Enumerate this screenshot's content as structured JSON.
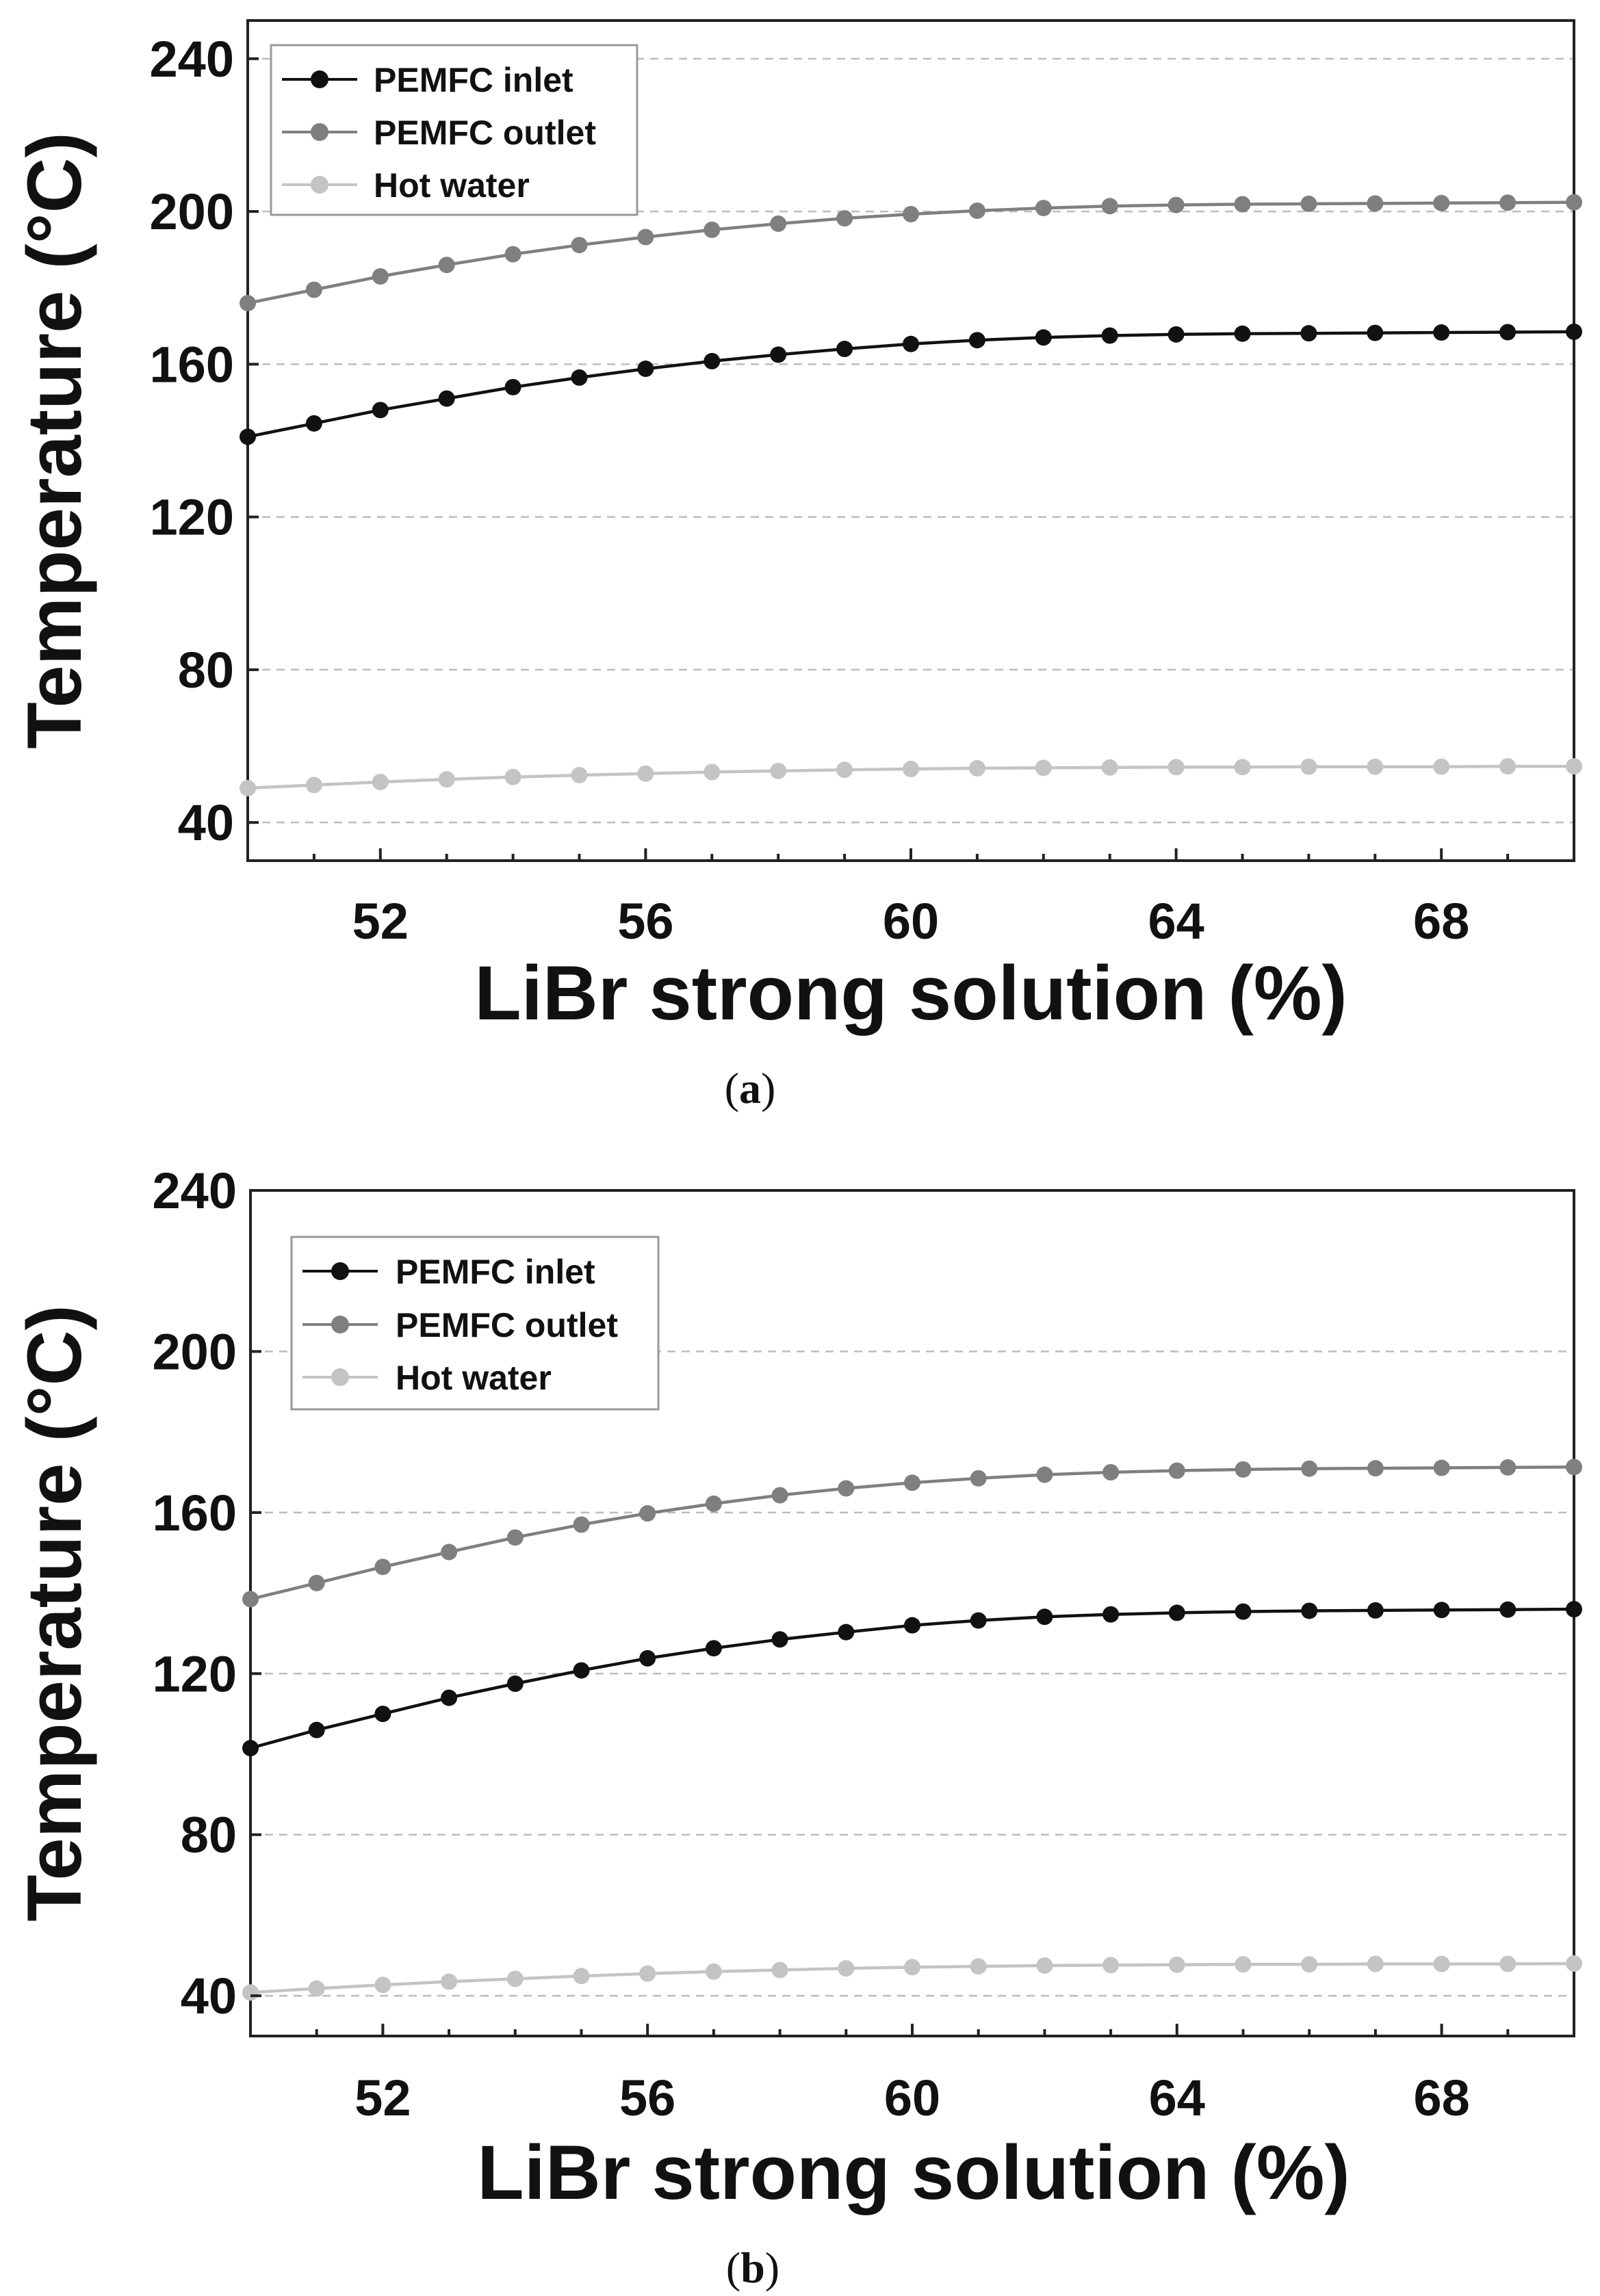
{
  "chart_data": [
    {
      "type": "line",
      "panel_label": "a",
      "xlabel": "LiBr strong solution (%)",
      "ylabel": "Temperature (°C)",
      "xlim": [
        50,
        70
      ],
      "ylim": [
        30,
        250
      ],
      "xticks": [
        52,
        56,
        60,
        64,
        68
      ],
      "yticks": [
        40,
        80,
        120,
        160,
        200,
        240
      ],
      "grid": "horizontal dashed",
      "legend_position": "top-left",
      "x": [
        50,
        51,
        52,
        53,
        54,
        55,
        56,
        57,
        58,
        59,
        60,
        61,
        62,
        63,
        64,
        65,
        66,
        67,
        68,
        69,
        70
      ],
      "series": [
        {
          "name": "PEMFC inlet",
          "color": "#111111",
          "values": [
            141,
            144.5,
            148,
            151,
            154,
            156.5,
            158.8,
            160.8,
            162.5,
            164,
            165.3,
            166.3,
            167,
            167.5,
            167.8,
            168,
            168.1,
            168.2,
            168.3,
            168.4,
            168.5
          ]
        },
        {
          "name": "PEMFC outlet",
          "color": "#7f7f7f",
          "values": [
            176,
            179.5,
            183,
            186,
            188.8,
            191.2,
            193.3,
            195.2,
            196.8,
            198.2,
            199.3,
            200.2,
            200.9,
            201.4,
            201.7,
            201.9,
            202,
            202.1,
            202.2,
            202.3,
            202.4
          ]
        },
        {
          "name": "Hot water",
          "color": "#c4c4c4",
          "values": [
            49,
            49.8,
            50.6,
            51.3,
            51.9,
            52.4,
            52.8,
            53.2,
            53.5,
            53.8,
            54,
            54.2,
            54.3,
            54.4,
            54.5,
            54.5,
            54.6,
            54.6,
            54.6,
            54.7,
            54.7
          ]
        }
      ]
    },
    {
      "type": "line",
      "panel_label": "b",
      "xlabel": "LiBr strong solution (%)",
      "ylabel": "Temperature (°C)",
      "xlim": [
        50,
        70
      ],
      "ylim": [
        30,
        240
      ],
      "xticks": [
        52,
        56,
        60,
        64,
        68
      ],
      "yticks": [
        40,
        80,
        120,
        160,
        200,
        240
      ],
      "grid": "horizontal dashed",
      "legend_position": "top-left",
      "x": [
        50,
        51,
        52,
        53,
        54,
        55,
        56,
        57,
        58,
        59,
        60,
        61,
        62,
        63,
        64,
        65,
        66,
        67,
        68,
        69,
        70
      ],
      "series": [
        {
          "name": "PEMFC inlet",
          "color": "#111111",
          "values": [
            101.5,
            106,
            110,
            114,
            117.5,
            120.8,
            123.8,
            126.3,
            128.5,
            130.3,
            132,
            133.2,
            134.1,
            134.7,
            135.1,
            135.4,
            135.6,
            135.7,
            135.8,
            135.9,
            136
          ]
        },
        {
          "name": "PEMFC outlet",
          "color": "#7f7f7f",
          "values": [
            138.5,
            142.5,
            146.5,
            150.2,
            153.8,
            157,
            159.8,
            162.2,
            164.3,
            166,
            167.4,
            168.5,
            169.4,
            170,
            170.4,
            170.7,
            170.9,
            171,
            171.1,
            171.2,
            171.3
          ]
        },
        {
          "name": "Hot water",
          "color": "#c4c4c4",
          "values": [
            40.8,
            41.8,
            42.7,
            43.5,
            44.2,
            44.9,
            45.5,
            46,
            46.4,
            46.8,
            47.1,
            47.3,
            47.5,
            47.6,
            47.7,
            47.8,
            47.8,
            47.9,
            47.9,
            47.9,
            48
          ]
        }
      ]
    }
  ],
  "captions": [
    {
      "open": "(",
      "label": "a",
      "close": ")"
    },
    {
      "open": "(",
      "label": "b",
      "close": ")"
    }
  ]
}
